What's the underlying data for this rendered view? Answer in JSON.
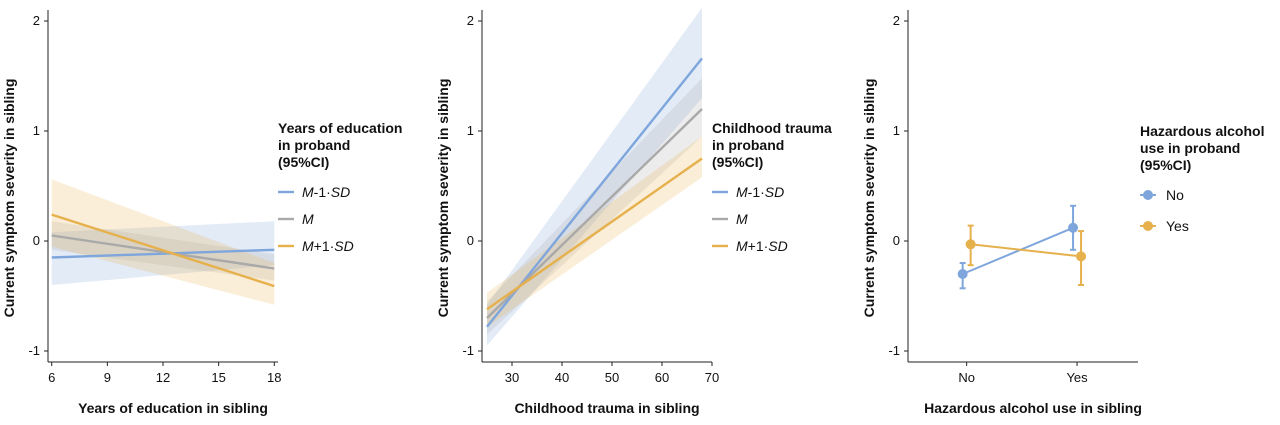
{
  "chart_data": [
    {
      "type": "line",
      "xlabel": "Years of education in sibling",
      "ylabel": "Current symptom severity in sibling",
      "xlim": [
        5.8,
        18.2
      ],
      "ylim": [
        -1.1,
        2.1
      ],
      "xticks": [
        "6",
        "9",
        "12",
        "15",
        "18"
      ],
      "xtick_values": [
        6,
        9,
        12,
        15,
        18
      ],
      "yticks": [
        "-1",
        "0",
        "1",
        "2"
      ],
      "ytick_values": [
        -1,
        0,
        1,
        2
      ],
      "legend_title": [
        "Years of education",
        "in proband",
        "(95%CI)"
      ],
      "legend_position": "right",
      "series": [
        {
          "name": "M-1·SD",
          "color": "#7ea6dc",
          "x": [
            6,
            18
          ],
          "y": [
            -0.15,
            -0.08
          ],
          "ci_low": [
            -0.4,
            -0.22
          ],
          "ci_high": [
            0.08,
            0.18
          ]
        },
        {
          "name": "M",
          "color": "#a9a9a9",
          "x": [
            6,
            18
          ],
          "y": [
            0.05,
            -0.25
          ],
          "ci_low": [
            -0.08,
            -0.36
          ],
          "ci_high": [
            0.18,
            -0.12
          ]
        },
        {
          "name": "M+1·SD",
          "color": "#e6b04c",
          "x": [
            6,
            18
          ],
          "y": [
            0.24,
            -0.41
          ],
          "ci_low": [
            -0.05,
            -0.58
          ],
          "ci_high": [
            0.56,
            -0.2
          ]
        }
      ]
    },
    {
      "type": "line",
      "xlabel": "Childhood trauma in sibling",
      "ylabel": "Current symptom severity in sibling",
      "xlim": [
        24,
        70
      ],
      "ylim": [
        -1.1,
        2.1
      ],
      "xticks": [
        "30",
        "40",
        "50",
        "60",
        "70"
      ],
      "xtick_values": [
        30,
        40,
        50,
        60,
        70
      ],
      "yticks": [
        "-1",
        "0",
        "1",
        "2"
      ],
      "ytick_values": [
        -1,
        0,
        1,
        2
      ],
      "legend_title": [
        "Childhood trauma",
        "in proband",
        "(95%CI)"
      ],
      "legend_position": "right",
      "series": [
        {
          "name": "M-1·SD",
          "color": "#7ea6dc",
          "x": [
            25,
            68
          ],
          "y": [
            -0.78,
            1.66
          ],
          "ci_low": [
            -0.95,
            1.3
          ],
          "ci_high": [
            -0.58,
            2.12
          ]
        },
        {
          "name": "M",
          "color": "#a9a9a9",
          "x": [
            25,
            68
          ],
          "y": [
            -0.7,
            1.2
          ],
          "ci_low": [
            -0.85,
            0.95
          ],
          "ci_high": [
            -0.55,
            1.48
          ]
        },
        {
          "name": "M+1·SD",
          "color": "#e6b04c",
          "x": [
            25,
            68
          ],
          "y": [
            -0.62,
            0.75
          ],
          "ci_low": [
            -0.78,
            0.58
          ],
          "ci_high": [
            -0.47,
            0.95
          ]
        }
      ]
    },
    {
      "type": "scatter",
      "xlabel": "Hazardous alcohol use in sibling",
      "ylabel": "Current symptom severity in sibling",
      "categories": [
        "No",
        "Yes"
      ],
      "ylim": [
        -1.1,
        2.1
      ],
      "yticks": [
        "-1",
        "0",
        "1",
        "2"
      ],
      "ytick_values": [
        -1,
        0,
        1,
        2
      ],
      "legend_title": [
        "Hazardous alcohol",
        "use in proband",
        "(95%CI)"
      ],
      "legend_position": "right",
      "series": [
        {
          "name": "No",
          "color": "#7ea6dc",
          "values": [
            -0.3,
            0.12
          ],
          "ci_low": [
            -0.43,
            -0.08
          ],
          "ci_high": [
            -0.2,
            0.32
          ]
        },
        {
          "name": "Yes",
          "color": "#e6b04c",
          "values": [
            -0.03,
            -0.14
          ],
          "ci_low": [
            -0.22,
            -0.4
          ],
          "ci_high": [
            0.14,
            0.09
          ]
        }
      ]
    }
  ]
}
